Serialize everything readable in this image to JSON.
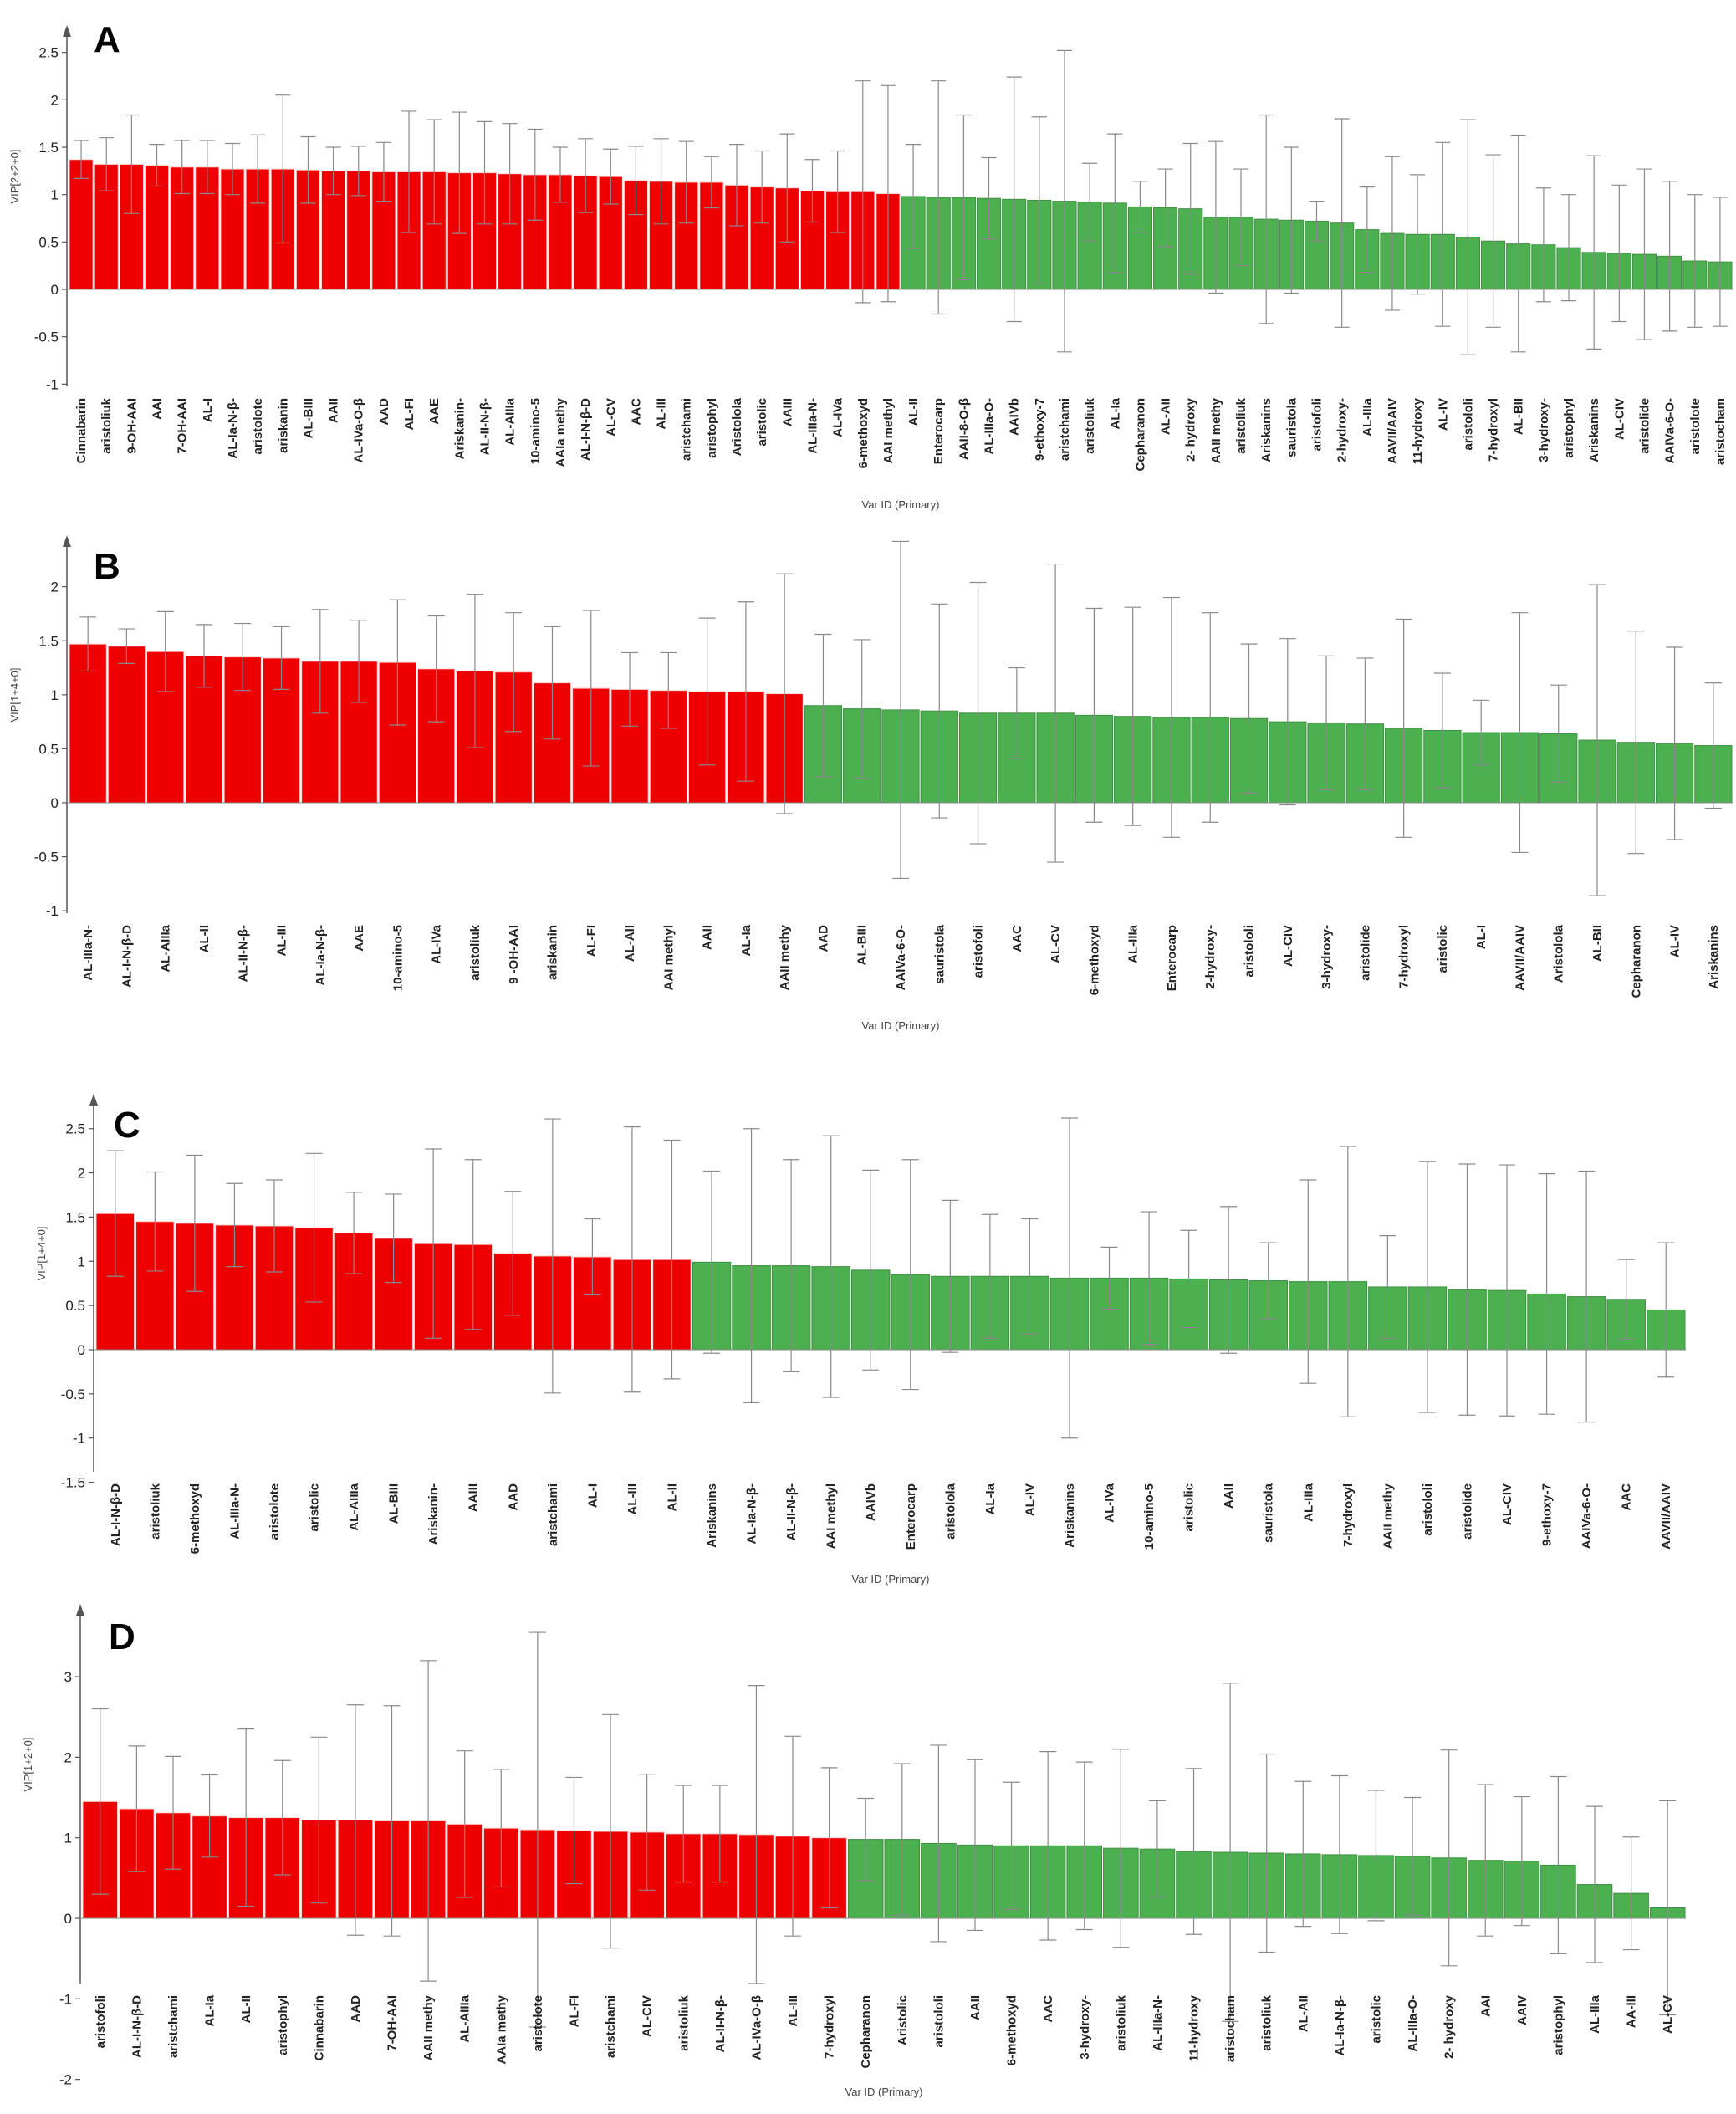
{
  "colors": {
    "above": "#ee0000",
    "below": "#4caf50",
    "above_edge": "#ffd6d6",
    "below_edge": "#3f8f42",
    "error": "#8a8a8a",
    "zero": "#888888"
  },
  "chart_data": [
    {
      "panel": "A",
      "type": "bar",
      "ylabel": "VIP[2+2+0]",
      "xlabel": "Var ID (Primary)",
      "ylim": [
        -1,
        2.7
      ],
      "yticks": [
        "-1",
        "-0.5",
        "0",
        "0.5",
        "1",
        "1.5",
        "2",
        "2.5"
      ],
      "categories": [
        "Cinnabarin",
        "aristoliuk",
        "9-OH-AAI",
        "AAI",
        "7-OH-AAI",
        "AL-I",
        "AL-Ia-N-β-",
        "aristolote",
        "ariskanin",
        "AL-BIII",
        "AAII",
        "AL-IVa-O-β",
        "AAD",
        "AL-FI",
        "AAE",
        "Ariskanin-",
        "AL-II-N-β-",
        "AL-AIIIa",
        "10-amino-5",
        "AAIa methy",
        "AL-I-N-β-D",
        "AL-CV",
        "AAC",
        "AL-III",
        "aristchami",
        "aristophyl",
        "Aristolola",
        "aristolic",
        "AAIII",
        "AL-IIIa-N-",
        "AL-IVa",
        "6-methoxyd",
        "AAI methyl",
        "AL-II",
        "Enterocarp",
        "AAII-8-O-β",
        "AL-IIIa-O-",
        "AAIVb",
        "9-ethoxy-7",
        "aristchami",
        "aristoliuk",
        "AL-Ia",
        "Cepharanon",
        "AL-AII",
        "2- hydroxy",
        "AAII methy",
        "aristoliuk",
        "Ariskanins",
        "sauristola",
        "aristofoli",
        "2-hydroxy-",
        "AL-IIIa",
        "AAVII/AAIV",
        "11-hydroxy",
        "AL-IV",
        "aristololi",
        "7-hydroxyl",
        "AL-BII",
        "3-hydroxy-",
        "aristophyl",
        "Ariskanins",
        "AL-CIV",
        "aristolide",
        "AAIVa-6-O-",
        "aristolote",
        "aristocham"
      ],
      "values": [
        1.37,
        1.32,
        1.32,
        1.31,
        1.29,
        1.29,
        1.27,
        1.27,
        1.27,
        1.26,
        1.25,
        1.25,
        1.24,
        1.24,
        1.24,
        1.23,
        1.23,
        1.22,
        1.21,
        1.21,
        1.2,
        1.19,
        1.15,
        1.14,
        1.13,
        1.13,
        1.1,
        1.08,
        1.07,
        1.04,
        1.03,
        1.03,
        1.01,
        0.98,
        0.97,
        0.97,
        0.96,
        0.95,
        0.94,
        0.93,
        0.92,
        0.91,
        0.87,
        0.86,
        0.85,
        0.76,
        0.76,
        0.74,
        0.73,
        0.72,
        0.7,
        0.63,
        0.59,
        0.58,
        0.58,
        0.55,
        0.51,
        0.48,
        0.47,
        0.44,
        0.39,
        0.38,
        0.37,
        0.35,
        0.3,
        0.29
      ],
      "errors": [
        0.2,
        0.28,
        0.52,
        0.22,
        0.28,
        0.28,
        0.27,
        0.36,
        0.78,
        0.35,
        0.25,
        0.26,
        0.31,
        0.64,
        0.55,
        0.64,
        0.54,
        0.53,
        0.48,
        0.29,
        0.39,
        0.29,
        0.36,
        0.45,
        0.43,
        0.27,
        0.43,
        0.38,
        0.57,
        0.33,
        0.43,
        1.17,
        1.14,
        0.55,
        1.23,
        0.87,
        0.43,
        1.29,
        0.88,
        1.59,
        0.41,
        0.73,
        0.27,
        0.41,
        0.69,
        0.8,
        0.51,
        1.1,
        0.77,
        0.21,
        1.1,
        0.45,
        0.81,
        0.63,
        0.97,
        1.24,
        0.91,
        1.14,
        0.6,
        0.56,
        1.02,
        0.72,
        0.9,
        0.79,
        0.7,
        0.68
      ]
    },
    {
      "panel": "B",
      "type": "bar",
      "ylabel": "VIP[1+4+0]",
      "xlabel": "Var ID (Primary)",
      "ylim": [
        -1,
        2.4
      ],
      "yticks": [
        "-1",
        "-0.5",
        "0",
        "0.5",
        "1",
        "1.5",
        "2"
      ],
      "categories": [
        "AL-IIIa-N-",
        "AL-I-N-β-D",
        "AL-AIIIa",
        "AL-II",
        "AL-II-N-β-",
        "AL-III",
        "AL-Ia-N-β-",
        "AAE",
        "10-amino-5",
        "AL-IVa",
        "aristoliuk",
        "9 -OH-AAI",
        "ariskanin",
        "AL-FI",
        "AL-AII",
        "AAI methyl",
        "AAII",
        "AL-Ia",
        "AAII methy",
        "AAD",
        "AL-BIII",
        "AAIVa-6-O-",
        "sauristola",
        "aristofoli",
        "AAC",
        "AL-CV",
        "6-methoxyd",
        "AL-IIIa",
        "Enterocarp",
        "2-hydroxy-",
        "aristololi",
        "AL-CIV",
        "3-hydroxy-",
        "aristolide",
        "7-hydroxyl",
        "aristolic",
        "AL-I",
        "AAVII/AAIV",
        "Aristolola",
        "AL-BII",
        "Cepharanon",
        "AL-IV",
        "Ariskanins"
      ],
      "values": [
        1.47,
        1.45,
        1.4,
        1.36,
        1.35,
        1.34,
        1.31,
        1.31,
        1.3,
        1.24,
        1.22,
        1.21,
        1.11,
        1.06,
        1.05,
        1.04,
        1.03,
        1.03,
        1.01,
        0.9,
        0.87,
        0.86,
        0.85,
        0.83,
        0.83,
        0.83,
        0.81,
        0.8,
        0.79,
        0.79,
        0.78,
        0.75,
        0.74,
        0.73,
        0.69,
        0.67,
        0.65,
        0.65,
        0.64,
        0.58,
        0.56,
        0.55,
        0.53
      ],
      "errors": [
        0.25,
        0.16,
        0.37,
        0.29,
        0.31,
        0.29,
        0.48,
        0.38,
        0.58,
        0.49,
        0.71,
        0.55,
        0.52,
        0.72,
        0.34,
        0.35,
        0.68,
        0.83,
        1.11,
        0.66,
        0.64,
        1.56,
        0.99,
        1.21,
        0.42,
        1.38,
        0.99,
        1.01,
        1.11,
        0.97,
        0.69,
        0.77,
        0.62,
        0.61,
        1.01,
        0.53,
        0.3,
        1.11,
        0.45,
        1.44,
        1.03,
        0.89,
        0.58
      ]
    },
    {
      "panel": "C",
      "type": "bar",
      "ylabel": "VIP[1+4+0]",
      "xlabel": "Var ID (Primary)",
      "ylim": [
        -1.5,
        2.8
      ],
      "yticks": [
        "-1.5",
        "-1",
        "-0.5",
        "0",
        "0.5",
        "1",
        "1.5",
        "2",
        "2.5"
      ],
      "categories": [
        "AL-I-N-β-D",
        "aristoliuk",
        "6-methoxyd",
        "AL-IIIa-N-",
        "aristolote",
        "aristolic",
        "AL-AIIIa",
        "AL-BIII",
        "Ariskanin-",
        "AAIII",
        "AAD",
        "aristchami",
        "AL-I",
        "AL-III",
        "AL-II",
        "Ariskanins",
        "AL-Ia-N-β-",
        "AL-II-N-β-",
        "AAI methyl",
        "AAIVb",
        "Enterocarp",
        "aristolola",
        "AL-Ia",
        "AL-IV",
        "Ariskanins",
        "AL-IVa",
        "10-amino-5",
        "aristolic",
        "AAII",
        "sauristola",
        "AL-IIIa",
        "7-hydroxyl",
        "AAII methy",
        "aristololi",
        "aristolide",
        "AL-CIV",
        "9-ethoxy-7",
        "AAIVa-6-O-",
        "AAC",
        "AAVII/AAIV"
      ],
      "values": [
        1.54,
        1.45,
        1.43,
        1.41,
        1.4,
        1.38,
        1.32,
        1.26,
        1.2,
        1.19,
        1.09,
        1.06,
        1.05,
        1.02,
        1.02,
        0.99,
        0.95,
        0.95,
        0.94,
        0.9,
        0.85,
        0.83,
        0.83,
        0.83,
        0.81,
        0.81,
        0.81,
        0.8,
        0.79,
        0.78,
        0.77,
        0.77,
        0.71,
        0.71,
        0.68,
        0.67,
        0.63,
        0.6,
        0.57,
        0.45
      ],
      "errors": [
        0.71,
        0.56,
        0.77,
        0.47,
        0.52,
        0.84,
        0.46,
        0.5,
        1.07,
        0.96,
        0.7,
        1.55,
        0.43,
        1.5,
        1.35,
        1.03,
        1.55,
        1.2,
        1.48,
        1.13,
        1.3,
        0.86,
        0.7,
        0.65,
        1.81,
        0.35,
        0.75,
        0.55,
        0.83,
        0.43,
        1.15,
        1.53,
        0.58,
        1.42,
        1.42,
        1.42,
        1.36,
        1.42,
        0.45,
        0.76
      ]
    },
    {
      "panel": "D",
      "type": "bar",
      "ylabel": "VIP[1+2+0]",
      "xlabel": "Var ID (Primary)",
      "ylim": [
        -2,
        3.8
      ],
      "yticks": [
        "-2",
        "-1",
        "0",
        "1",
        "2",
        "3"
      ],
      "categories": [
        "aristofoli",
        "AL-I-N-β-D",
        "aristchami",
        "AL-Ia",
        "AL-II",
        "aristophyl",
        "Cinnabarin",
        "AAD",
        "7-OH-AAI",
        "AAII methy",
        "AL-AIIIa",
        "AAIa methy",
        "aristolote",
        "AL-FI",
        "aristchami",
        "AL-CIV",
        "aristoliuk",
        "AL-II-N-β-",
        "AL-IVa-O-β",
        "AL-III",
        "7-hydroxyl",
        "Cepharanon",
        "Aristolic",
        "aristololi",
        "AAII",
        "6-methoxyd",
        "AAC",
        "3-hydroxy-",
        "aristoliuk",
        "AL-IIIa-N-",
        "11-hydroxy",
        "aristocham",
        "aristoliuk",
        "AL-AII",
        "AL-Ia-N-β-",
        "aristolic",
        "AL-IIIa-O-",
        "2- hydroxy",
        "AAI",
        "AAIV",
        "aristophyl",
        "AL-IIIa",
        "AA-III",
        "AL-CV"
      ],
      "values": [
        1.45,
        1.36,
        1.31,
        1.27,
        1.25,
        1.25,
        1.22,
        1.22,
        1.21,
        1.21,
        1.17,
        1.12,
        1.1,
        1.09,
        1.08,
        1.07,
        1.05,
        1.05,
        1.04,
        1.02,
        1.0,
        0.98,
        0.98,
        0.93,
        0.91,
        0.9,
        0.9,
        0.9,
        0.87,
        0.86,
        0.83,
        0.82,
        0.81,
        0.8,
        0.79,
        0.78,
        0.77,
        0.75,
        0.72,
        0.71,
        0.66,
        0.42,
        0.31,
        0.13
      ],
      "errors": [
        1.15,
        0.78,
        0.7,
        0.51,
        1.1,
        0.71,
        1.03,
        1.43,
        1.43,
        1.99,
        0.91,
        0.73,
        2.45,
        0.66,
        1.45,
        0.72,
        0.6,
        0.6,
        1.85,
        1.24,
        0.87,
        0.51,
        0.94,
        1.22,
        1.06,
        0.79,
        1.17,
        1.04,
        1.23,
        0.6,
        1.03,
        2.1,
        1.23,
        0.9,
        0.98,
        0.81,
        0.73,
        1.34,
        0.94,
        0.8,
        1.1,
        0.97,
        0.7,
        1.33
      ]
    }
  ]
}
